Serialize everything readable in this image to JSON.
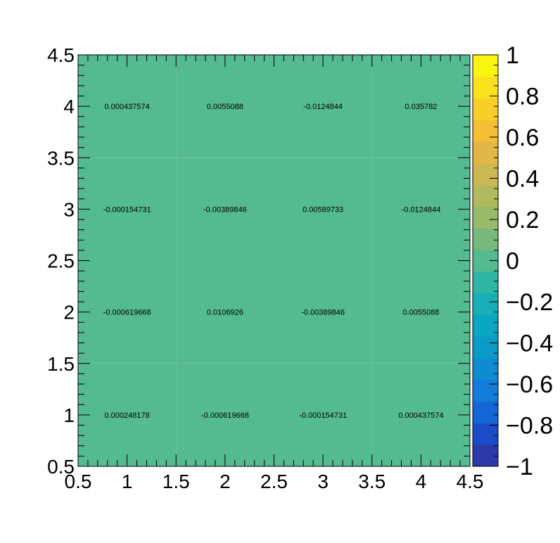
{
  "chart_data": {
    "type": "heatmap",
    "title": "",
    "xlabel": "",
    "ylabel": "",
    "xlim": [
      0.5,
      4.5
    ],
    "ylim": [
      0.5,
      4.5
    ],
    "zlim": [
      -1,
      1
    ],
    "x": [
      1,
      2,
      3,
      4
    ],
    "y": [
      1,
      2,
      3,
      4
    ],
    "x_ticks": [
      "0.5",
      "1",
      "1.5",
      "2",
      "2.5",
      "3",
      "3.5",
      "4",
      "4.5"
    ],
    "y_ticks": [
      "0.5",
      "1",
      "1.5",
      "2",
      "2.5",
      "3",
      "3.5",
      "4",
      "4.5"
    ],
    "z_ticks": [
      "1",
      "0.8",
      "0.6",
      "0.4",
      "0.2",
      "0",
      "−0.2",
      "−0.4",
      "−0.6",
      "−0.8",
      "−1"
    ],
    "cells": [
      {
        "x": 1,
        "y": 1,
        "value": 0.000248178,
        "label": "0.000248178"
      },
      {
        "x": 2,
        "y": 1,
        "value": -0.000619668,
        "label": "-0.000619668"
      },
      {
        "x": 3,
        "y": 1,
        "value": -0.000154731,
        "label": "-0.000154731"
      },
      {
        "x": 4,
        "y": 1,
        "value": 0.000437574,
        "label": "0.000437574"
      },
      {
        "x": 1,
        "y": 2,
        "value": -0.000619668,
        "label": "-0.000619668"
      },
      {
        "x": 2,
        "y": 2,
        "value": 0.0106926,
        "label": "0.0106926"
      },
      {
        "x": 3,
        "y": 2,
        "value": -0.00389846,
        "label": "-0.00389846"
      },
      {
        "x": 4,
        "y": 2,
        "value": 0.0055088,
        "label": "0.0055088"
      },
      {
        "x": 1,
        "y": 3,
        "value": -0.000154731,
        "label": "-0.000154731"
      },
      {
        "x": 2,
        "y": 3,
        "value": -0.00389846,
        "label": "-0.00389846"
      },
      {
        "x": 3,
        "y": 3,
        "value": 0.00589733,
        "label": "0.00589733"
      },
      {
        "x": 4,
        "y": 3,
        "value": -0.0124844,
        "label": "-0.0124844"
      },
      {
        "x": 1,
        "y": 4,
        "value": 0.000437574,
        "label": "0.000437574"
      },
      {
        "x": 2,
        "y": 4,
        "value": 0.0055088,
        "label": "0.0055088"
      },
      {
        "x": 3,
        "y": 4,
        "value": -0.0124844,
        "label": "-0.0124844"
      },
      {
        "x": 4,
        "y": 4,
        "value": 0.035782,
        "label": "0.035782"
      }
    ],
    "palette": [
      "#2a3aa8",
      "#1a4cc7",
      "#1466d8",
      "#137bd8",
      "#0e8bd1",
      "#099ac8",
      "#0aa6c3",
      "#17aeb7",
      "#2db6a3",
      "#54ba8f",
      "#75ba7a",
      "#98bb6a",
      "#b1ba5d",
      "#cdb753",
      "#e2b647",
      "#f3bd34",
      "#f8cf26",
      "#f9e21d",
      "#f9f50f"
    ],
    "grid": false,
    "legend": "colorbar-right"
  }
}
